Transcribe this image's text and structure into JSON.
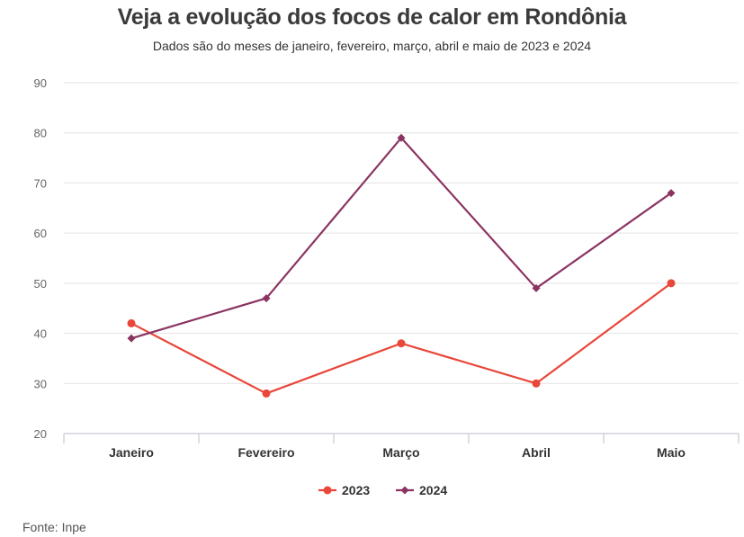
{
  "title": "Veja a evolução dos focos de calor em Rondônia",
  "subtitle": "Dados são do meses de janeiro, fevereiro, março, abril e maio de 2023 e 2024",
  "source": "Fonte: Inpe",
  "colors": {
    "s2023": "#e8473a",
    "s2024": "#8b3462",
    "grid": "#e3e3e3",
    "axis": "#d0d4dc",
    "tick": "#666666"
  },
  "chart_data": {
    "type": "line",
    "categories": [
      "Janeiro",
      "Fevereiro",
      "Março",
      "Abril",
      "Maio"
    ],
    "ylim": [
      20,
      90
    ],
    "yticks": [
      20,
      30,
      40,
      50,
      60,
      70,
      80,
      90
    ],
    "grid": true,
    "legend": "bottom-center",
    "series": [
      {
        "name": "2023",
        "marker": "circle",
        "values": [
          42,
          28,
          38,
          30,
          50
        ]
      },
      {
        "name": "2024",
        "marker": "diamond",
        "values": [
          39,
          47,
          79,
          49,
          68
        ]
      }
    ]
  }
}
